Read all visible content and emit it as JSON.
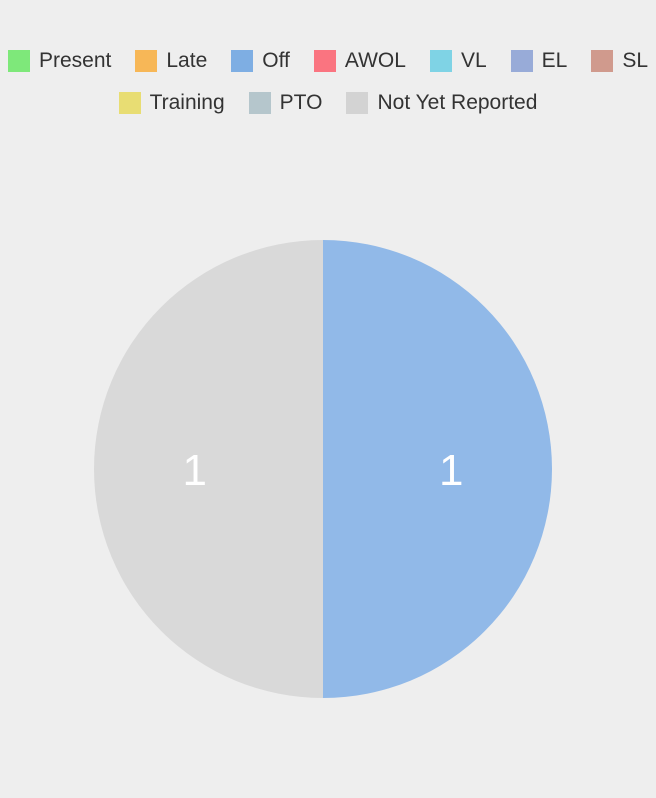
{
  "chart_data": {
    "type": "pie",
    "legend_position": "top",
    "categories": [
      "Present",
      "Late",
      "Off",
      "AWOL",
      "VL",
      "EL",
      "SL",
      "Training",
      "PTO",
      "Not Yet Reported"
    ],
    "colors": [
      "#7ee87a",
      "#f7b757",
      "#7eaee3",
      "#fa7480",
      "#7fd3e5",
      "#98abd8",
      "#d09a8d",
      "#e8dd73",
      "#b5c6cc",
      "#d3d3d3"
    ],
    "slices": [
      {
        "category": "Off",
        "value": 1,
        "color": "#91b9e8",
        "label": "1"
      },
      {
        "category": "Not Yet Reported",
        "value": 1,
        "color": "#d9d9d9",
        "label": "1"
      }
    ]
  },
  "legend": {
    "rows": [
      [
        {
          "label": "Present",
          "color": "#7ee87a"
        },
        {
          "label": "Late",
          "color": "#f7b757"
        },
        {
          "label": "Off",
          "color": "#7eaee3"
        },
        {
          "label": "AWOL",
          "color": "#fa7480"
        },
        {
          "label": "VL",
          "color": "#7fd3e5"
        },
        {
          "label": "EL",
          "color": "#98abd8"
        },
        {
          "label": "SL",
          "color": "#d09a8d"
        }
      ],
      [
        {
          "label": "Training",
          "color": "#e8dd73"
        },
        {
          "label": "PTO",
          "color": "#b5c6cc"
        },
        {
          "label": "Not Yet Reported",
          "color": "#d3d3d3"
        }
      ]
    ]
  }
}
